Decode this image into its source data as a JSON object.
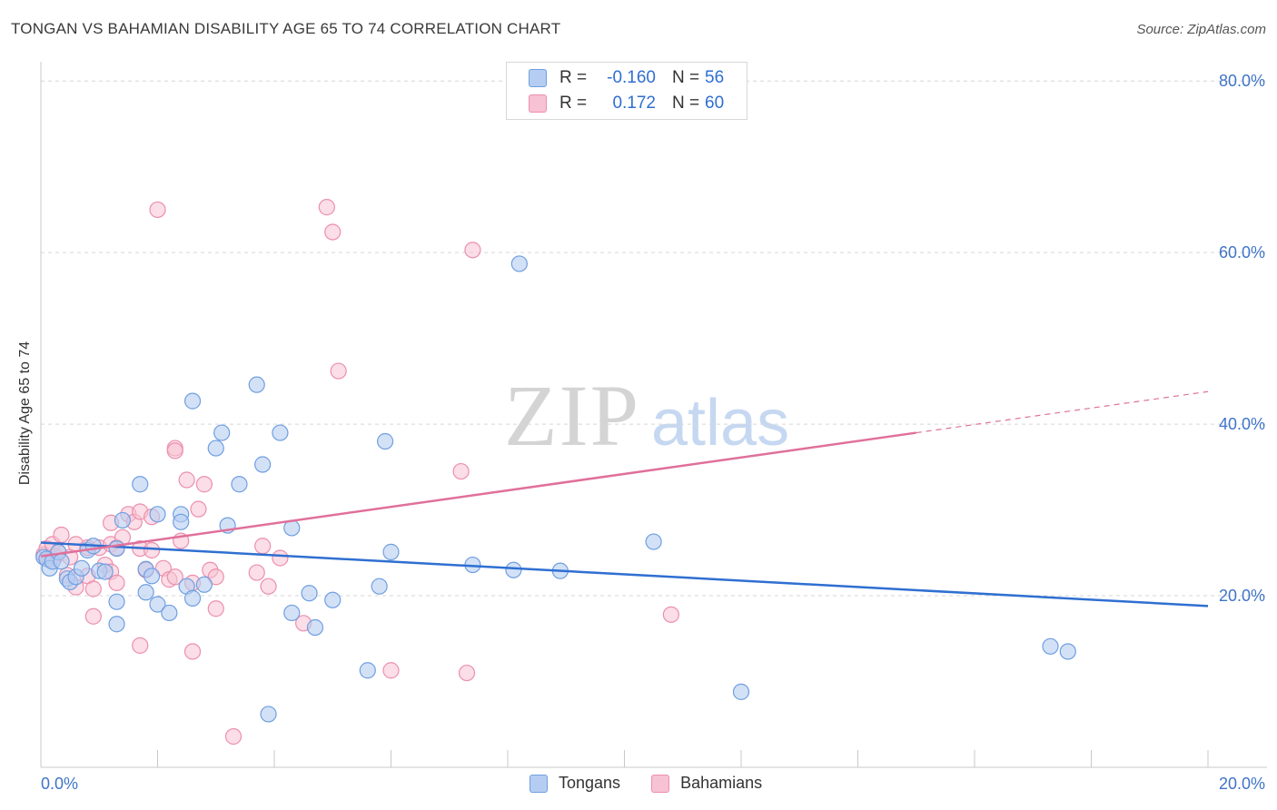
{
  "title": "TONGAN VS BAHAMIAN DISABILITY AGE 65 TO 74 CORRELATION CHART",
  "source": "Source: ZipAtlas.com",
  "watermark": {
    "zip": "ZIP",
    "atlas": "atlas"
  },
  "legend": {
    "rows": [
      {
        "r_label": "R =",
        "r_value": "-0.160",
        "n_label": "N =",
        "n_value": "56",
        "color": "#6f9fe0"
      },
      {
        "r_label": "R =",
        "r_value": "0.172",
        "n_label": "N =",
        "n_value": "60",
        "color": "#f0a0bb"
      }
    ]
  },
  "bottom_legend": {
    "tongans": "Tongans",
    "bahamians": "Bahamians"
  },
  "colors": {
    "tongan_fill": "#b5cdf2",
    "tongan_stroke": "#6f9fe0",
    "tongan_line": "#2f6fd1",
    "bahamian_fill": "#f7c2d3",
    "bahamian_stroke": "#ec8fad",
    "bahamian_line": "#e0709a",
    "axis_label": "#3f74c8",
    "grid": "#d6d6d6"
  },
  "chart_data": {
    "type": "scatter",
    "title": "TONGAN VS BAHAMIAN DISABILITY AGE 65 TO 74 CORRELATION CHART",
    "xlabel": "",
    "ylabel": "Disability Age 65 to 74",
    "xlim": [
      0,
      20
    ],
    "ylim": [
      0,
      85
    ],
    "x_tick_labels": [
      "0.0%",
      "20.0%"
    ],
    "y_ticks": [
      20,
      40,
      60,
      80
    ],
    "y_tick_labels": [
      "20.0%",
      "40.0%",
      "60.0%",
      "80.0%"
    ],
    "grid": true,
    "legend_placement": "top-center",
    "series": [
      {
        "name": "Tongans",
        "points": [
          [
            0.05,
            24.5
          ],
          [
            0.1,
            24.3
          ],
          [
            0.15,
            23.2
          ],
          [
            0.2,
            24.0
          ],
          [
            0.3,
            25.1
          ],
          [
            0.35,
            24.0
          ],
          [
            0.45,
            22.0
          ],
          [
            0.5,
            21.6
          ],
          [
            0.6,
            22.2
          ],
          [
            0.7,
            23.2
          ],
          [
            0.8,
            25.3
          ],
          [
            0.9,
            25.8
          ],
          [
            1.0,
            22.9
          ],
          [
            1.1,
            22.8
          ],
          [
            1.3,
            25.5
          ],
          [
            1.4,
            28.8
          ],
          [
            1.3,
            19.3
          ],
          [
            1.3,
            16.7
          ],
          [
            1.7,
            33.0
          ],
          [
            1.8,
            23.1
          ],
          [
            1.8,
            20.4
          ],
          [
            1.9,
            22.3
          ],
          [
            2.0,
            19.0
          ],
          [
            2.0,
            29.5
          ],
          [
            2.2,
            18.0
          ],
          [
            2.4,
            29.5
          ],
          [
            2.4,
            28.6
          ],
          [
            2.5,
            21.1
          ],
          [
            2.6,
            19.7
          ],
          [
            2.6,
            42.7
          ],
          [
            2.8,
            21.3
          ],
          [
            3.0,
            37.2
          ],
          [
            3.1,
            39.0
          ],
          [
            3.2,
            28.2
          ],
          [
            3.4,
            33.0
          ],
          [
            3.7,
            44.6
          ],
          [
            3.8,
            35.3
          ],
          [
            3.9,
            6.2
          ],
          [
            4.1,
            39.0
          ],
          [
            4.3,
            18.0
          ],
          [
            4.3,
            27.9
          ],
          [
            4.6,
            20.3
          ],
          [
            4.7,
            16.3
          ],
          [
            5.0,
            19.5
          ],
          [
            5.6,
            11.3
          ],
          [
            5.8,
            21.1
          ],
          [
            5.9,
            38.0
          ],
          [
            6.0,
            25.1
          ],
          [
            7.4,
            23.6
          ],
          [
            8.2,
            58.7
          ],
          [
            8.1,
            23.0
          ],
          [
            8.9,
            22.9
          ],
          [
            10.5,
            26.3
          ],
          [
            12.0,
            8.8
          ],
          [
            17.3,
            14.1
          ],
          [
            17.6,
            13.5
          ]
        ]
      },
      {
        "name": "Bahamians",
        "points": [
          [
            0.05,
            24.8
          ],
          [
            0.1,
            25.5
          ],
          [
            0.15,
            24.2
          ],
          [
            0.2,
            26.0
          ],
          [
            0.25,
            24.6
          ],
          [
            0.3,
            25.0
          ],
          [
            0.35,
            27.1
          ],
          [
            0.45,
            22.4
          ],
          [
            0.5,
            24.5
          ],
          [
            0.6,
            26.0
          ],
          [
            0.6,
            21.0
          ],
          [
            0.8,
            25.6
          ],
          [
            0.8,
            22.3
          ],
          [
            0.9,
            17.6
          ],
          [
            0.9,
            20.8
          ],
          [
            1.0,
            25.6
          ],
          [
            1.1,
            23.6
          ],
          [
            1.2,
            28.5
          ],
          [
            1.2,
            26.0
          ],
          [
            1.2,
            22.8
          ],
          [
            1.3,
            25.6
          ],
          [
            1.3,
            21.5
          ],
          [
            1.4,
            26.8
          ],
          [
            1.5,
            29.5
          ],
          [
            1.6,
            28.6
          ],
          [
            1.7,
            29.8
          ],
          [
            1.7,
            25.5
          ],
          [
            1.7,
            14.2
          ],
          [
            1.8,
            23.0
          ],
          [
            1.9,
            25.3
          ],
          [
            1.9,
            29.2
          ],
          [
            2.1,
            23.2
          ],
          [
            2.2,
            21.9
          ],
          [
            2.3,
            37.2
          ],
          [
            2.3,
            36.9
          ],
          [
            2.3,
            22.2
          ],
          [
            2.4,
            26.4
          ],
          [
            2.5,
            33.5
          ],
          [
            2.6,
            21.5
          ],
          [
            2.6,
            13.5
          ],
          [
            2.7,
            30.1
          ],
          [
            2.8,
            33.0
          ],
          [
            2.9,
            23.0
          ],
          [
            3.0,
            22.2
          ],
          [
            3.0,
            18.5
          ],
          [
            3.3,
            3.6
          ],
          [
            3.7,
            22.7
          ],
          [
            3.8,
            25.8
          ],
          [
            3.9,
            21.1
          ],
          [
            4.1,
            24.4
          ],
          [
            4.5,
            16.8
          ],
          [
            4.9,
            65.3
          ],
          [
            5.0,
            62.4
          ],
          [
            5.1,
            46.2
          ],
          [
            6.0,
            11.3
          ],
          [
            7.2,
            34.5
          ],
          [
            7.3,
            11.0
          ],
          [
            7.4,
            60.3
          ],
          [
            10.8,
            17.8
          ],
          [
            2.0,
            65.0
          ]
        ]
      }
    ],
    "trend_lines": [
      {
        "name": "Tongans",
        "x": [
          0,
          20
        ],
        "y": [
          26.2,
          18.8
        ]
      },
      {
        "name": "Bahamians",
        "x": [
          0,
          15
        ],
        "y": [
          24.6,
          39.0
        ],
        "dashed_extension": {
          "x": [
            15,
            20
          ],
          "y": [
            39.0,
            43.8
          ]
        }
      }
    ]
  }
}
